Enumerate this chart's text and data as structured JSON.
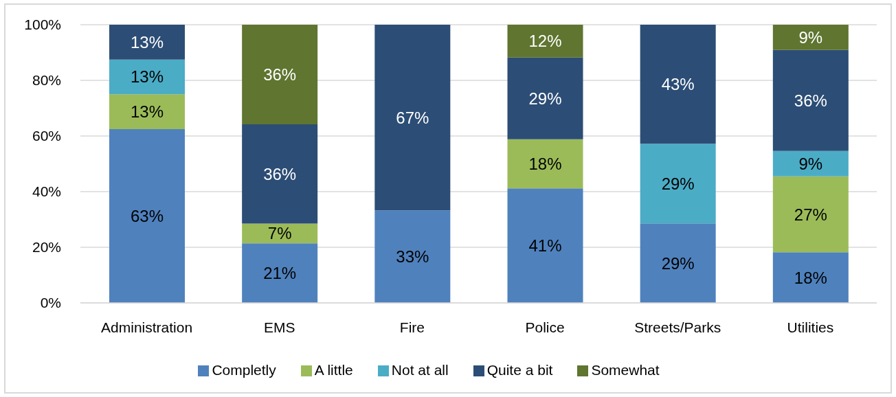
{
  "chart_data": {
    "type": "bar",
    "stacked": true,
    "categories": [
      "Administration",
      "EMS",
      "Fire",
      "Police",
      "Streets/Parks",
      "Utilities"
    ],
    "series": [
      {
        "name": "Completly",
        "color": "#4f81bd",
        "values": [
          62.5,
          21.4,
          33.3,
          41.2,
          28.6,
          18.2
        ],
        "value_labels": [
          "63%",
          "21%",
          "33%",
          "41%",
          "29%",
          "18%"
        ]
      },
      {
        "name": "A little",
        "color": "#9bbb59",
        "values": [
          12.5,
          7.1,
          null,
          17.6,
          null,
          27.3
        ],
        "value_labels": [
          "13%",
          "7%",
          null,
          "18%",
          null,
          "27%"
        ]
      },
      {
        "name": "Not at all",
        "color": "#4bacc6",
        "values": [
          12.5,
          null,
          null,
          null,
          28.6,
          9.1
        ],
        "value_labels": [
          "13%",
          null,
          null,
          null,
          "29%",
          "9%"
        ]
      },
      {
        "name": "Quite a bit",
        "color": "#2c4d75",
        "values": [
          12.5,
          35.7,
          66.7,
          29.4,
          42.8,
          36.3
        ],
        "value_labels": [
          "13%",
          "36%",
          "67%",
          "29%",
          "43%",
          "36%"
        ]
      },
      {
        "name": "Somewhat",
        "color": "#5f7530",
        "values": [
          null,
          35.8,
          null,
          11.8,
          null,
          9.1
        ],
        "value_labels": [
          null,
          "36%",
          null,
          "12%",
          null,
          "9%"
        ]
      }
    ],
    "ylim": [
      0,
      100
    ],
    "yticks": [
      {
        "value": 0,
        "label": "0%"
      },
      {
        "value": 20,
        "label": "20%"
      },
      {
        "value": 40,
        "label": "40%"
      },
      {
        "value": 60,
        "label": "60%"
      },
      {
        "value": 80,
        "label": "80%"
      },
      {
        "value": 100,
        "label": "100%"
      }
    ],
    "grid": "y",
    "legend": "bottom"
  }
}
